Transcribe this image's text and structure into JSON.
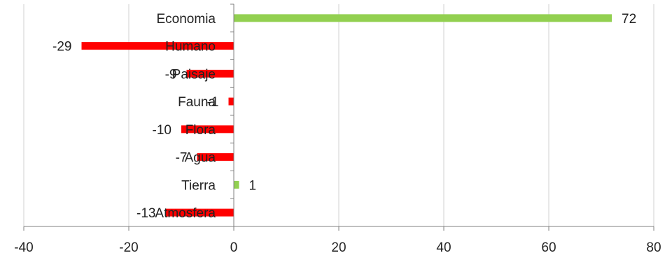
{
  "chart_data": {
    "type": "bar",
    "orientation": "horizontal",
    "categories": [
      "Economia",
      "Humano",
      "Paisaje",
      "Fauna",
      "Flora",
      "Agua",
      "Tierra",
      "Atmosfera"
    ],
    "values": [
      72,
      -29,
      -9,
      -1,
      -10,
      -7,
      1,
      -13
    ],
    "xlim": [
      -40,
      80
    ],
    "xticks": [
      "-40",
      "-20",
      "0",
      "20",
      "40",
      "60",
      "80"
    ],
    "grid": "vertical",
    "colors": {
      "positive": "#92d050",
      "negative": "#ff0000"
    },
    "data_labels": [
      "72",
      "-29",
      "-9",
      "-1",
      "-10",
      "-7",
      "1",
      "-13"
    ],
    "legend": "none"
  }
}
